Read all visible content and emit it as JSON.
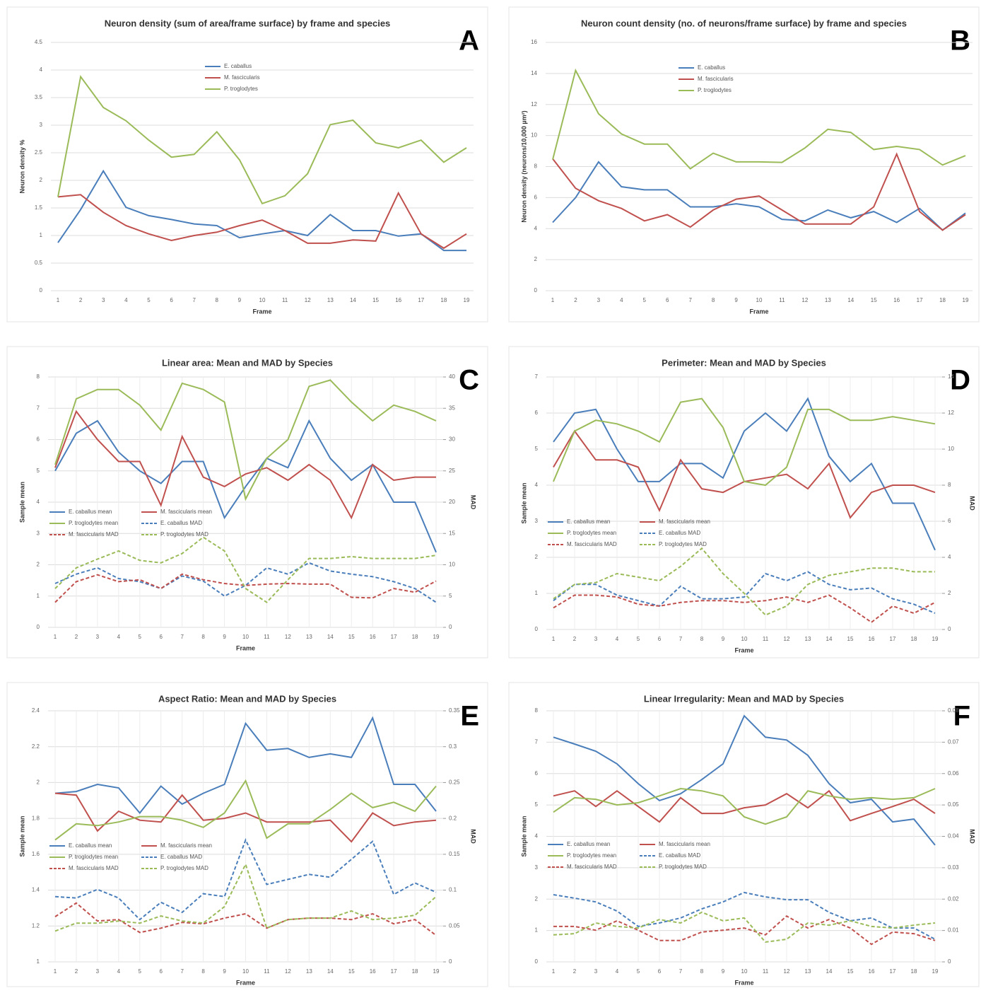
{
  "chart_data": [
    {
      "type": "line",
      "panel": "A",
      "title": "Neuron density (sum of area/frame surface) by frame and species",
      "x_label": "Frame",
      "y_label": "Neuron density %",
      "categories": [
        "1",
        "2",
        "3",
        "4",
        "5",
        "6",
        "7",
        "8",
        "9",
        "10",
        "11",
        "12",
        "13",
        "14",
        "15",
        "16",
        "17",
        "18",
        "19"
      ],
      "ylim": [
        0,
        4.5
      ],
      "yticks": [
        0,
        0.5,
        1,
        1.5,
        2,
        2.5,
        3,
        3.5,
        4,
        4.5
      ],
      "grid": true,
      "series": [
        {
          "name": "E. caballus",
          "color": "#4a7ebb",
          "values": [
            0.87,
            1.47,
            2.17,
            1.51,
            1.36,
            1.29,
            1.21,
            1.18,
            0.96,
            1.03,
            1.09,
            1.0,
            1.38,
            1.09,
            1.09,
            0.99,
            1.03,
            0.73,
            0.73
          ]
        },
        {
          "name": "M. fascicularis",
          "color": "#c0504d",
          "values": [
            1.7,
            1.74,
            1.42,
            1.18,
            1.03,
            0.91,
            1.0,
            1.06,
            1.18,
            1.28,
            1.09,
            0.86,
            0.86,
            0.92,
            0.9,
            1.77,
            1.03,
            0.77,
            1.03
          ]
        },
        {
          "name": "P. troglodytes",
          "color": "#9bbb59",
          "values": [
            1.7,
            3.88,
            3.32,
            3.08,
            2.73,
            2.42,
            2.47,
            2.88,
            2.37,
            1.58,
            1.72,
            2.12,
            3.01,
            3.09,
            2.68,
            2.59,
            2.73,
            2.33,
            2.59
          ]
        }
      ]
    },
    {
      "type": "line",
      "panel": "B",
      "title": "Neuron count density (no. of neurons/frame surface) by frame and species",
      "x_label": "Frame",
      "y_label": "Neuron density (neurons/10,000 µm²)",
      "categories": [
        "1",
        "2",
        "3",
        "4",
        "5",
        "6",
        "7",
        "8",
        "9",
        "10",
        "11",
        "12",
        "13",
        "14",
        "15",
        "16",
        "17",
        "18",
        "19"
      ],
      "ylim": [
        0,
        16
      ],
      "yticks": [
        0,
        2,
        4,
        6,
        8,
        10,
        12,
        14,
        16
      ],
      "grid": true,
      "series": [
        {
          "name": "E. caballus",
          "color": "#4a7ebb",
          "values": [
            4.4,
            6.0,
            8.3,
            6.7,
            6.5,
            6.5,
            5.4,
            5.4,
            5.6,
            5.4,
            4.6,
            4.5,
            5.2,
            4.7,
            5.1,
            4.4,
            5.3,
            3.9,
            5.0
          ]
        },
        {
          "name": "M. fascicularis",
          "color": "#c0504d",
          "values": [
            8.5,
            6.6,
            5.8,
            5.3,
            4.5,
            4.9,
            4.1,
            5.2,
            5.9,
            6.1,
            5.2,
            4.3,
            4.3,
            4.3,
            5.4,
            8.8,
            5.1,
            3.9,
            4.9
          ]
        },
        {
          "name": "P. troglodytes",
          "color": "#9bbb59",
          "values": [
            8.45,
            14.2,
            11.4,
            10.1,
            9.45,
            9.45,
            7.86,
            8.86,
            8.3,
            8.3,
            8.27,
            9.2,
            10.4,
            10.2,
            9.1,
            9.3,
            9.1,
            8.1,
            8.7
          ]
        }
      ]
    },
    {
      "type": "line",
      "panel": "C",
      "title": "Linear area: Mean and MAD by Species",
      "x_label": "Frame",
      "y_label": "Sample mean",
      "y2_label": "MAD",
      "categories": [
        "1",
        "2",
        "3",
        "4",
        "5",
        "6",
        "7",
        "8",
        "9",
        "10",
        "11",
        "12",
        "13",
        "14",
        "15",
        "16",
        "17",
        "18",
        "19"
      ],
      "ylim": [
        0,
        8
      ],
      "yticks": [
        0,
        1,
        2,
        3,
        4,
        5,
        6,
        7,
        8
      ],
      "y2lim": [
        0,
        40
      ],
      "y2ticks": [
        0,
        5,
        10,
        15,
        20,
        25,
        30,
        35,
        40
      ],
      "grid": true,
      "series": [
        {
          "name": "E. caballus mean",
          "color": "#4a7ebb",
          "line_style": "solid",
          "values": [
            5.0,
            6.2,
            6.6,
            5.6,
            5.0,
            4.6,
            5.3,
            5.3,
            3.5,
            4.5,
            5.4,
            5.1,
            6.6,
            5.4,
            4.7,
            5.2,
            4.0,
            4.0,
            2.4
          ]
        },
        {
          "name": "M. fascicularis mean",
          "color": "#c0504d",
          "line_style": "solid",
          "values": [
            5.1,
            6.9,
            6.0,
            5.3,
            5.3,
            3.9,
            6.1,
            4.8,
            4.5,
            4.9,
            5.1,
            4.7,
            5.2,
            4.7,
            3.5,
            5.2,
            4.7,
            4.8,
            4.8
          ]
        },
        {
          "name": "P. troglodytes mean",
          "color": "#9bbb59",
          "line_style": "solid",
          "values": [
            5.2,
            7.3,
            7.6,
            7.6,
            7.1,
            6.3,
            7.8,
            7.6,
            7.2,
            4.1,
            5.4,
            6.0,
            7.7,
            7.9,
            7.2,
            6.6,
            7.1,
            6.9,
            6.6
          ]
        },
        {
          "name": "E. caballus MAD",
          "color": "#4a7ebb",
          "line_style": "dashed",
          "axis": "y2",
          "values": [
            7.0,
            8.5,
            9.5,
            7.8,
            7.3,
            6.2,
            8.2,
            7.4,
            5.0,
            6.7,
            9.5,
            8.5,
            10.3,
            9.0,
            8.5,
            8.1,
            7.3,
            6.2,
            4.0
          ]
        },
        {
          "name": "M. fascicularis MAD",
          "color": "#c0504d",
          "line_style": "dashed",
          "axis": "y2",
          "values": [
            4.0,
            7.3,
            8.4,
            7.3,
            7.6,
            6.2,
            8.5,
            7.6,
            7.0,
            6.7,
            6.9,
            7.0,
            6.9,
            6.9,
            4.8,
            4.7,
            6.2,
            5.6,
            7.4
          ]
        },
        {
          "name": "P. troglodytes MAD",
          "color": "#9bbb59",
          "line_style": "dashed",
          "axis": "y2",
          "values": [
            6.2,
            9.5,
            10.9,
            12.2,
            10.7,
            10.3,
            11.8,
            14.4,
            12.2,
            6.2,
            4.0,
            7.6,
            11.0,
            11.0,
            11.3,
            11.0,
            11.0,
            11.0,
            11.5
          ]
        }
      ]
    },
    {
      "type": "line",
      "panel": "D",
      "title": "Perimeter: Mean and MAD by Species",
      "x_label": "Frame",
      "y_label": "Sample mean",
      "y2_label": "MAD",
      "categories": [
        "1",
        "2",
        "3",
        "4",
        "5",
        "6",
        "7",
        "8",
        "9",
        "10",
        "11",
        "12",
        "13",
        "14",
        "15",
        "16",
        "17",
        "18",
        "19"
      ],
      "ylim": [
        0,
        7
      ],
      "yticks": [
        0,
        1,
        2,
        3,
        4,
        5,
        6,
        7
      ],
      "y2lim": [
        0,
        14
      ],
      "y2ticks": [
        0,
        2,
        4,
        6,
        8,
        10,
        12,
        14
      ],
      "grid": true,
      "series": [
        {
          "name": "E. caballus mean",
          "color": "#4a7ebb",
          "line_style": "solid",
          "values": [
            5.2,
            6.0,
            6.1,
            5.0,
            4.1,
            4.1,
            4.6,
            4.6,
            4.2,
            5.5,
            6.0,
            5.5,
            6.4,
            4.8,
            4.1,
            4.6,
            3.5,
            3.5,
            2.2
          ]
        },
        {
          "name": "M. fascicularis mean",
          "color": "#c0504d",
          "line_style": "solid",
          "values": [
            4.5,
            5.5,
            4.7,
            4.7,
            4.5,
            3.3,
            4.7,
            3.9,
            3.8,
            4.1,
            4.2,
            4.3,
            3.9,
            4.6,
            3.1,
            3.8,
            4.0,
            4.0,
            3.8
          ]
        },
        {
          "name": "P. troglodytes mean",
          "color": "#9bbb59",
          "line_style": "solid",
          "values": [
            4.1,
            5.5,
            5.8,
            5.7,
            5.5,
            5.2,
            6.3,
            6.4,
            5.6,
            4.1,
            4.0,
            4.5,
            6.1,
            6.1,
            5.8,
            5.8,
            5.9,
            5.8,
            5.7
          ]
        },
        {
          "name": "E. caballus MAD",
          "color": "#4a7ebb",
          "line_style": "dashed",
          "axis": "y2",
          "values": [
            1.6,
            2.5,
            2.5,
            1.9,
            1.6,
            1.3,
            2.4,
            1.7,
            1.7,
            1.8,
            3.1,
            2.7,
            3.2,
            2.5,
            2.2,
            2.3,
            1.7,
            1.4,
            0.9
          ]
        },
        {
          "name": "M. fascicularis MAD",
          "color": "#c0504d",
          "line_style": "dashed",
          "axis": "y2",
          "values": [
            1.2,
            1.9,
            1.9,
            1.8,
            1.4,
            1.3,
            1.5,
            1.6,
            1.6,
            1.5,
            1.6,
            1.8,
            1.5,
            1.9,
            1.2,
            0.4,
            1.3,
            0.9,
            1.5
          ]
        },
        {
          "name": "P. troglodytes MAD",
          "color": "#9bbb59",
          "line_style": "dashed",
          "axis": "y2",
          "values": [
            1.7,
            2.5,
            2.6,
            3.1,
            2.9,
            2.7,
            3.5,
            4.5,
            3.1,
            2.0,
            0.8,
            1.3,
            2.5,
            3.0,
            3.2,
            3.4,
            3.4,
            3.2,
            3.2
          ]
        }
      ]
    },
    {
      "type": "line",
      "panel": "E",
      "title": "Aspect Ratio: Mean and MAD by Species",
      "x_label": "Frame",
      "y_label": "Sample mean",
      "y2_label": "MAD",
      "categories": [
        "1",
        "2",
        "3",
        "4",
        "5",
        "6",
        "7",
        "8",
        "9",
        "10",
        "11",
        "12",
        "13",
        "14",
        "15",
        "16",
        "17",
        "18",
        "19"
      ],
      "ylim": [
        1,
        2.4
      ],
      "yticks": [
        1,
        1.2,
        1.4,
        1.6,
        1.8,
        2,
        2.2,
        2.4
      ],
      "y2lim": [
        0,
        0.35
      ],
      "y2ticks": [
        0,
        0.05,
        0.1,
        0.15,
        0.2,
        0.25,
        0.3,
        0.35
      ],
      "grid": true,
      "series": [
        {
          "name": "E. caballus mean",
          "color": "#4a7ebb",
          "line_style": "solid",
          "values": [
            1.94,
            1.95,
            1.99,
            1.97,
            1.83,
            1.98,
            1.88,
            1.94,
            1.99,
            2.33,
            2.18,
            2.19,
            2.14,
            2.16,
            2.14,
            2.36,
            1.99,
            1.99,
            1.84
          ]
        },
        {
          "name": "M. fascicularis mean",
          "color": "#c0504d",
          "line_style": "solid",
          "values": [
            1.94,
            1.93,
            1.73,
            1.84,
            1.79,
            1.78,
            1.93,
            1.79,
            1.8,
            1.83,
            1.78,
            1.78,
            1.78,
            1.79,
            1.67,
            1.83,
            1.76,
            1.78,
            1.79
          ]
        },
        {
          "name": "P. troglodytes mean",
          "color": "#9bbb59",
          "line_style": "solid",
          "values": [
            1.68,
            1.77,
            1.76,
            1.78,
            1.81,
            1.81,
            1.79,
            1.75,
            1.83,
            2.01,
            1.69,
            1.77,
            1.77,
            1.85,
            1.94,
            1.86,
            1.89,
            1.84,
            1.98
          ]
        },
        {
          "name": "E. caballus MAD",
          "color": "#4a7ebb",
          "line_style": "dashed",
          "axis": "y2",
          "values": [
            0.091,
            0.089,
            0.101,
            0.089,
            0.059,
            0.083,
            0.069,
            0.095,
            0.091,
            0.17,
            0.108,
            0.115,
            0.122,
            0.118,
            0.143,
            0.168,
            0.094,
            0.11,
            0.097
          ]
        },
        {
          "name": "M. fascicularis MAD",
          "color": "#c0504d",
          "line_style": "dashed",
          "axis": "y2",
          "values": [
            0.063,
            0.082,
            0.057,
            0.059,
            0.041,
            0.047,
            0.055,
            0.053,
            0.061,
            0.067,
            0.047,
            0.059,
            0.061,
            0.061,
            0.059,
            0.067,
            0.053,
            0.059,
            0.037
          ]
        },
        {
          "name": "P. troglodytes MAD",
          "color": "#9bbb59",
          "line_style": "dashed",
          "axis": "y2",
          "values": [
            0.043,
            0.054,
            0.054,
            0.057,
            0.054,
            0.064,
            0.057,
            0.054,
            0.077,
            0.136,
            0.047,
            0.059,
            0.061,
            0.061,
            0.071,
            0.059,
            0.061,
            0.065,
            0.091
          ]
        }
      ]
    },
    {
      "type": "line",
      "panel": "F",
      "title": "Linear Irregularity: Mean and MAD by Species",
      "x_label": "Frame",
      "y_label": "Sample mean",
      "y2_label": "MAD",
      "categories": [
        "1",
        "2",
        "3",
        "4",
        "5",
        "6",
        "7",
        "8",
        "9",
        "10",
        "11",
        "12",
        "13",
        "14",
        "15",
        "16",
        "17",
        "18",
        "19"
      ],
      "ylim": [
        0,
        8
      ],
      "yticks": [
        0,
        1,
        2,
        3,
        4,
        5,
        6,
        7,
        8
      ],
      "y2lim": [
        0,
        0.08
      ],
      "y2ticks": [
        0,
        0.01,
        0.02,
        0.03,
        0.04,
        0.05,
        0.06,
        0.07,
        0.08
      ],
      "grid": true,
      "series": [
        {
          "name": "E. caballus mean",
          "color": "#4a7ebb",
          "line_style": "solid",
          "values": [
            7.16,
            6.94,
            6.71,
            6.31,
            5.68,
            5.14,
            5.36,
            5.81,
            6.31,
            7.84,
            7.16,
            7.07,
            6.58,
            5.68,
            5.07,
            5.18,
            4.46,
            4.55,
            3.72
          ]
        },
        {
          "name": "M. fascicularis mean",
          "color": "#c0504d",
          "line_style": "solid",
          "values": [
            5.29,
            5.45,
            4.95,
            5.45,
            4.95,
            4.46,
            5.23,
            4.73,
            4.73,
            4.91,
            5.0,
            5.36,
            4.91,
            5.45,
            4.5,
            4.73,
            4.95,
            5.18,
            4.73
          ]
        },
        {
          "name": "P. troglodytes mean",
          "color": "#9bbb59",
          "line_style": "solid",
          "values": [
            4.77,
            5.23,
            5.18,
            5.0,
            5.07,
            5.29,
            5.52,
            5.45,
            5.29,
            4.62,
            4.39,
            4.62,
            5.45,
            5.29,
            5.18,
            5.23,
            5.18,
            5.23,
            5.52
          ]
        },
        {
          "name": "E. caballus MAD",
          "color": "#4a7ebb",
          "line_style": "dashed",
          "axis": "y2",
          "values": [
            0.0214,
            0.0203,
            0.0191,
            0.0162,
            0.0113,
            0.0124,
            0.014,
            0.0169,
            0.0191,
            0.0221,
            0.0207,
            0.0198,
            0.0198,
            0.0158,
            0.0131,
            0.014,
            0.0108,
            0.0108,
            0.0072
          ]
        },
        {
          "name": "M. fascicularis MAD",
          "color": "#c0504d",
          "line_style": "dashed",
          "axis": "y2",
          "values": [
            0.0113,
            0.0113,
            0.0101,
            0.0131,
            0.0101,
            0.0068,
            0.0068,
            0.0095,
            0.0101,
            0.0108,
            0.0086,
            0.0146,
            0.0108,
            0.0135,
            0.0108,
            0.0056,
            0.0095,
            0.009,
            0.0068
          ]
        },
        {
          "name": "P. troglodytes MAD",
          "color": "#9bbb59",
          "line_style": "dashed",
          "axis": "y2",
          "values": [
            0.0086,
            0.009,
            0.0124,
            0.0113,
            0.0108,
            0.0135,
            0.0124,
            0.0158,
            0.0131,
            0.014,
            0.0063,
            0.0072,
            0.0124,
            0.0117,
            0.0131,
            0.0113,
            0.0108,
            0.0117,
            0.0124
          ]
        }
      ]
    }
  ]
}
